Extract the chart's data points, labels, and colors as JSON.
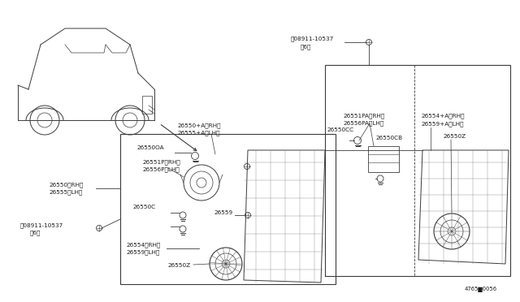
{
  "bg_color": "#ffffff",
  "line_color": "#3a3a3a",
  "text_color": "#1a1a1a",
  "part_ref": "4765▇0056",
  "labels": {
    "screw_top": "Ⓝ08911-10537",
    "screw_top_qty": "（6）",
    "screw_bot": "Ⓝ08911-10537",
    "screw_bot_qty": "（6）",
    "l_26550A": "26550+A＜RH＞",
    "l_26555A": "26555+A＜LH＞",
    "l_26550RH": "26550＜RH＞",
    "l_26555LH": "26555＜LH＞",
    "l_26550OA": "26550OA",
    "l_26551P": "26551P＜RH＞",
    "l_26556P": "26556P＜LH＞",
    "l_26550C": "26550C",
    "l_26554": "26554＜RH＞",
    "l_26559LH": "26559＜LH＞",
    "l_26550Z": "26550Z",
    "l_26559": "26559",
    "l_26551PA": "26551PA＜RH＞",
    "l_26556PA": "26556PA＜LH＞",
    "l_26550CC": "26550CC",
    "l_26550CB": "26550CB",
    "l_26554A": "26554+A＜RH＞",
    "l_26559A": "26559+A＜LH＞",
    "l_26550Z2": "26550Z"
  }
}
